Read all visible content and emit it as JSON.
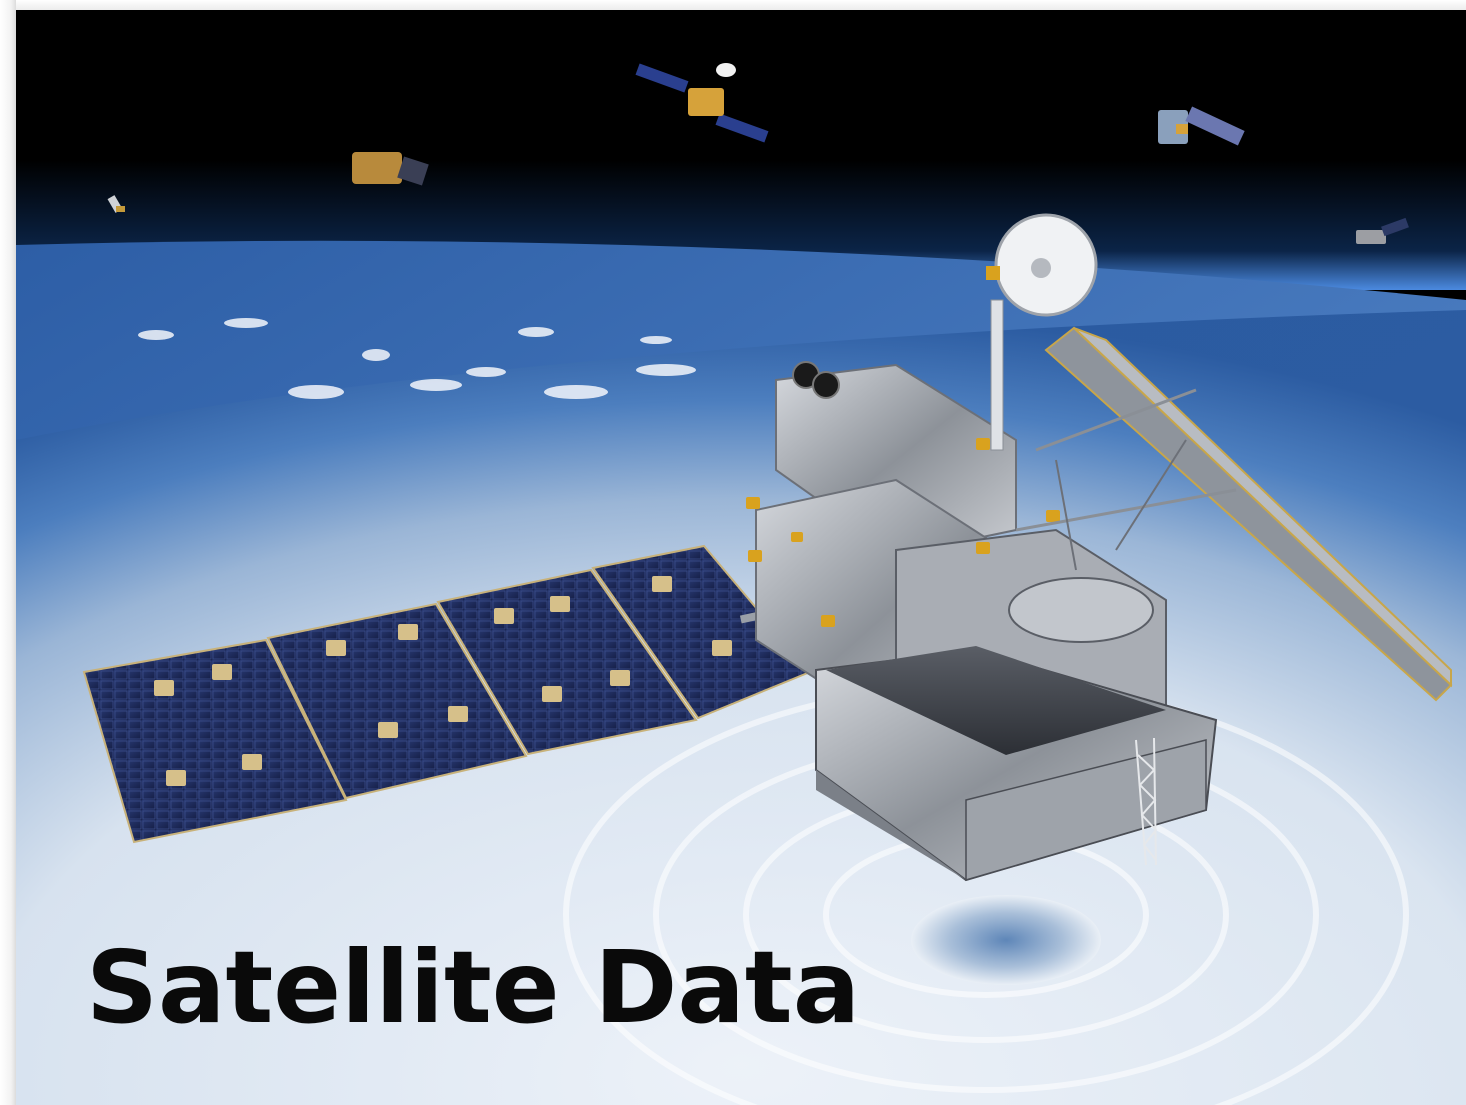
{
  "slide": {
    "title": "Satellite Data"
  },
  "scene": {
    "subject": "satellite-over-earth",
    "colors": {
      "space": "#000000",
      "atmosphere": "#3a78c8",
      "ocean": "#2f5f9e",
      "cloud": "#eef3f8",
      "solar_panel": "#1c2a5c",
      "foil_silver": "#b8bcc2",
      "gold": "#d9a21e",
      "title_text": "#0a0a0a"
    }
  }
}
